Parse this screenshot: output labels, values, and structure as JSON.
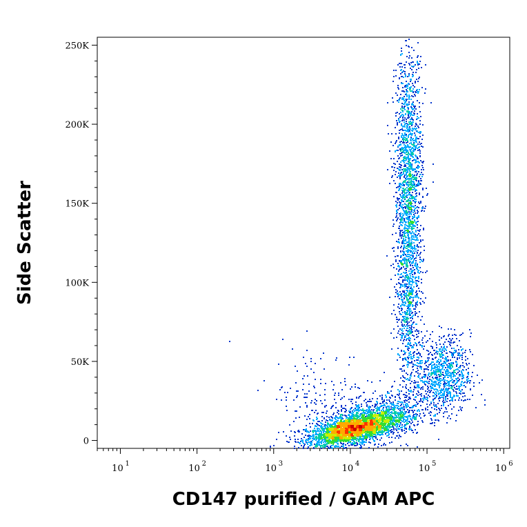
{
  "chart_data": {
    "type": "scatter",
    "subtype": "flow-cytometry-density",
    "xlabel": "CD147 purified / GAM APC",
    "ylabel": "Side Scatter",
    "x_scale": "log",
    "xlim": [
      5,
      1200000
    ],
    "ylim": [
      -5000,
      255000
    ],
    "x_ticks": [
      {
        "value": 10,
        "base": "10",
        "exp": "1"
      },
      {
        "value": 100,
        "base": "10",
        "exp": "2"
      },
      {
        "value": 1000,
        "base": "10",
        "exp": "3"
      },
      {
        "value": 10000,
        "base": "10",
        "exp": "4"
      },
      {
        "value": 100000,
        "base": "10",
        "exp": "5"
      },
      {
        "value": 1000000,
        "base": "10",
        "exp": "6"
      }
    ],
    "y_ticks": [
      {
        "value": 0,
        "label": "0"
      },
      {
        "value": 50000,
        "label": "50K"
      },
      {
        "value": 100000,
        "label": "100K"
      },
      {
        "value": 150000,
        "label": "150K"
      },
      {
        "value": 200000,
        "label": "200K"
      },
      {
        "value": 250000,
        "label": "250K"
      }
    ],
    "populations": [
      {
        "x_log_center": 4.0,
        "x_log_sd": 0.28,
        "y_center": 7000,
        "y_sd": 5000,
        "count": 2200,
        "corr": 0.6
      },
      {
        "x_log_center": 4.25,
        "x_log_sd": 0.35,
        "y_center": 12000,
        "y_sd": 8000,
        "count": 1500,
        "corr": 0.5
      },
      {
        "x_log_center": 4.75,
        "x_log_sd": 0.09,
        "y_center": 160000,
        "y_sd": 45000,
        "count": 1900,
        "corr": 0.0
      },
      {
        "x_log_center": 4.75,
        "x_log_sd": 0.08,
        "y_center": 80000,
        "y_sd": 30000,
        "count": 500,
        "corr": 0.0
      },
      {
        "x_log_center": 5.2,
        "x_log_sd": 0.18,
        "y_center": 42000,
        "y_sd": 12000,
        "count": 900,
        "corr": 0.0
      },
      {
        "x_log_center": 3.6,
        "x_log_sd": 0.35,
        "y_center": 25000,
        "y_sd": 18000,
        "count": 200,
        "corr": 0.0
      }
    ],
    "density_colors": [
      "#0000ff",
      "#0033cc",
      "#00aaff",
      "#00ccaa",
      "#33dd33",
      "#ccee00",
      "#ffaa00",
      "#ff3300",
      "#cc0000"
    ],
    "grid": false
  }
}
